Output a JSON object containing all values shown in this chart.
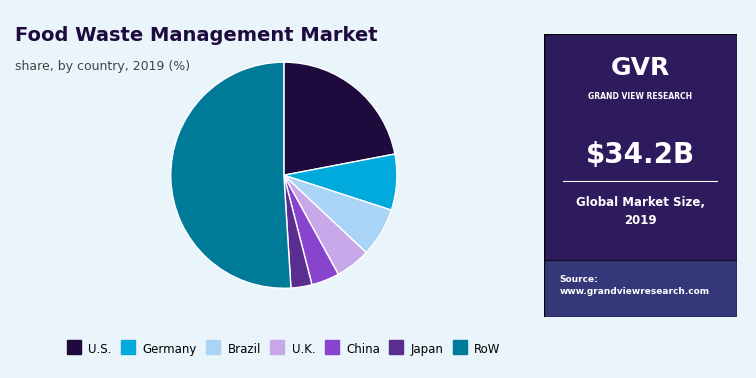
{
  "title": "Food Waste Management Market",
  "subtitle": "share, by country, 2019 (%)",
  "labels": [
    "U.S.",
    "Germany",
    "Brazil",
    "U.K.",
    "China",
    "Japan",
    "RoW"
  ],
  "values": [
    22,
    8,
    7,
    5,
    4,
    3,
    51
  ],
  "colors": [
    "#1e0a3c",
    "#00aadd",
    "#aad4f5",
    "#c8a8e8",
    "#8844cc",
    "#5c2d91",
    "#007a99"
  ],
  "legend_colors": [
    "#1e0a3c",
    "#00aadd",
    "#aad4f5",
    "#c8a8e8",
    "#8844cc",
    "#5c2d91",
    "#007a99"
  ],
  "startangle": 90,
  "bg_color": "#eaf4fb",
  "panel_bg": "#2d1b5e",
  "panel_text_big": "$34.2B",
  "panel_text_small": "Global Market Size,\n2019",
  "source_text": "Source:\nwww.grandviewresearch.com"
}
